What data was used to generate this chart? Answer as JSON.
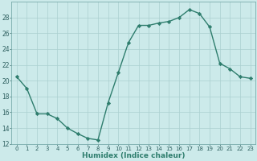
{
  "x": [
    0,
    1,
    2,
    3,
    4,
    5,
    6,
    7,
    8,
    9,
    10,
    11,
    12,
    13,
    14,
    15,
    16,
    17,
    18,
    19,
    20,
    21,
    22,
    23
  ],
  "y": [
    20.5,
    19.0,
    15.8,
    15.8,
    15.2,
    14.0,
    13.3,
    12.7,
    12.5,
    17.2,
    21.0,
    24.8,
    27.0,
    27.0,
    27.3,
    27.5,
    28.0,
    29.0,
    28.5,
    26.8,
    22.2,
    21.5,
    20.5,
    20.3
  ],
  "xlabel": "Humidex (Indice chaleur)",
  "ylim": [
    12,
    30
  ],
  "xlim": [
    -0.5,
    23.5
  ],
  "yticks": [
    12,
    14,
    16,
    18,
    20,
    22,
    24,
    26,
    28
  ],
  "xticks": [
    0,
    1,
    2,
    3,
    4,
    5,
    6,
    7,
    8,
    9,
    10,
    11,
    12,
    13,
    14,
    15,
    16,
    17,
    18,
    19,
    20,
    21,
    22,
    23
  ],
  "line_color": "#2e7d6d",
  "marker": "D",
  "marker_size": 2.2,
  "bg_color": "#cceaea",
  "grid_color": "#aacfcf",
  "line_width": 1.0,
  "tick_fontsize": 5.0,
  "xlabel_fontsize": 6.5,
  "ytick_fontsize": 5.5
}
